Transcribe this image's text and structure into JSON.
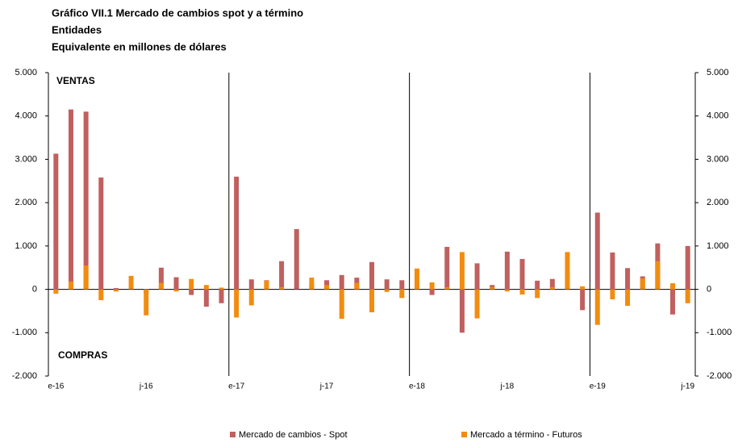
{
  "chart_data": {
    "type": "bar",
    "title": [
      "Gráfico VII.1 Mercado de cambios spot y a término",
      "Entidades",
      "Equivalente en millones de dólares"
    ],
    "annotations": [
      "VENTAS",
      "COMPRAS"
    ],
    "categories": [
      "e-16",
      null,
      null,
      null,
      null,
      null,
      "j-16",
      null,
      null,
      null,
      null,
      null,
      "e-17",
      null,
      null,
      null,
      null,
      null,
      "j-17",
      null,
      null,
      null,
      null,
      null,
      "e-18",
      null,
      null,
      null,
      null,
      null,
      "j-18",
      null,
      null,
      null,
      null,
      null,
      "e-19",
      null,
      null,
      null,
      null,
      null,
      "j-19"
    ],
    "series": [
      {
        "name": "Mercado de cambios - Spot",
        "color": "#c0605f",
        "values": [
          3130,
          4150,
          4100,
          2580,
          30,
          0,
          -100,
          500,
          280,
          -130,
          -400,
          -320,
          2600,
          230,
          210,
          650,
          1390,
          100,
          210,
          330,
          270,
          630,
          230,
          210,
          300,
          -130,
          980,
          -1000,
          600,
          100,
          870,
          700,
          200,
          240,
          400,
          -480,
          1770,
          850,
          490,
          300,
          1060,
          -580,
          1000
        ]
      },
      {
        "name": "Mercado a término - Futuros",
        "color": "#f28c0f",
        "values": [
          -100,
          180,
          550,
          -250,
          -50,
          310,
          -600,
          150,
          -50,
          240,
          100,
          40,
          -650,
          -370,
          200,
          50,
          0,
          270,
          100,
          -680,
          150,
          -530,
          -60,
          -200,
          480,
          160,
          50,
          860,
          -670,
          50,
          -50,
          -120,
          -200,
          50,
          860,
          70,
          -820,
          -230,
          -380,
          250,
          650,
          140,
          -320
        ]
      }
    ],
    "ylim": [
      -2000,
      5000
    ],
    "yticks": [
      {
        "value": -2000,
        "label": "-2.000"
      },
      {
        "value": -1000,
        "label": "-1.000"
      },
      0,
      {
        "value": 1000,
        "label": "1.000"
      },
      {
        "value": 2000,
        "label": "2.000"
      },
      {
        "value": 3000,
        "label": "3.000"
      },
      {
        "value": 4000,
        "label": "4.000"
      },
      {
        "value": 5000,
        "label": "5.000"
      }
    ]
  }
}
